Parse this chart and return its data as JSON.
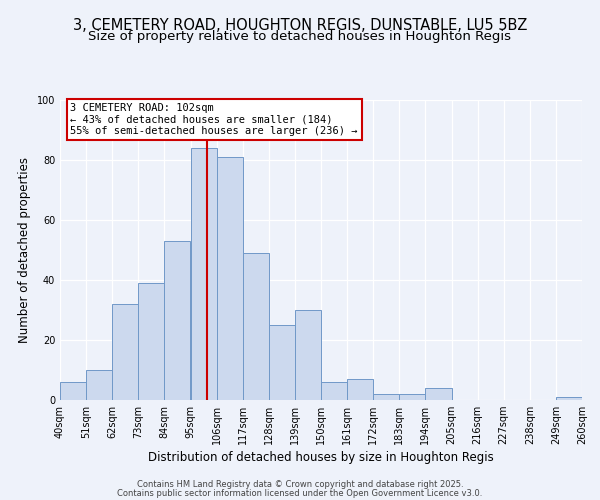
{
  "title1": "3, CEMETERY ROAD, HOUGHTON REGIS, DUNSTABLE, LU5 5BZ",
  "title2": "Size of property relative to detached houses in Houghton Regis",
  "xlabel": "Distribution of detached houses by size in Houghton Regis",
  "ylabel": "Number of detached properties",
  "bins": [
    40,
    51,
    62,
    73,
    84,
    95,
    106,
    117,
    128,
    139,
    150,
    161,
    172,
    183,
    194,
    205,
    216,
    227,
    238,
    249,
    260
  ],
  "counts": [
    6,
    10,
    32,
    39,
    53,
    84,
    81,
    49,
    25,
    30,
    6,
    7,
    2,
    2,
    4,
    0,
    0,
    0,
    0,
    1
  ],
  "bar_facecolor": "#ccd9ee",
  "bar_edgecolor": "#7098c8",
  "property_value": 102,
  "vline_color": "#cc0000",
  "annotation_line1": "3 CEMETERY ROAD: 102sqm",
  "annotation_line2": "← 43% of detached houses are smaller (184)",
  "annotation_line3": "55% of semi-detached houses are larger (236) →",
  "annotation_box_edgecolor": "#cc0000",
  "annotation_box_facecolor": "#ffffff",
  "ylim": [
    0,
    100
  ],
  "yticks": [
    0,
    20,
    40,
    60,
    80,
    100
  ],
  "tick_labels": [
    "40sqm",
    "51sqm",
    "62sqm",
    "73sqm",
    "84sqm",
    "95sqm",
    "106sqm",
    "117sqm",
    "128sqm",
    "139sqm",
    "150sqm",
    "161sqm",
    "172sqm",
    "183sqm",
    "194sqm",
    "205sqm",
    "216sqm",
    "227sqm",
    "238sqm",
    "249sqm",
    "260sqm"
  ],
  "footer1": "Contains HM Land Registry data © Crown copyright and database right 2025.",
  "footer2": "Contains public sector information licensed under the Open Government Licence v3.0.",
  "bg_color": "#eef2fa",
  "grid_color": "#ffffff",
  "title_fontsize": 10.5,
  "subtitle_fontsize": 9.5,
  "axis_fontsize": 8.5,
  "tick_fontsize": 7,
  "annot_fontsize": 7.5,
  "footer_fontsize": 6
}
